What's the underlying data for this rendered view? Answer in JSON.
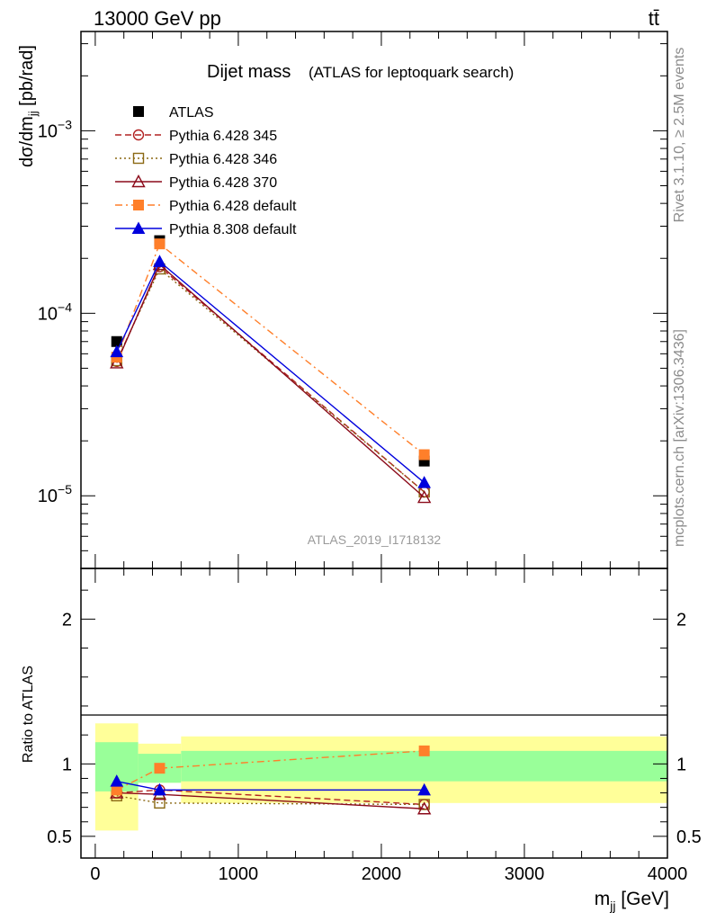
{
  "header": {
    "energy_label": "13000 GeV pp",
    "process_label": "tt̄"
  },
  "side_labels": {
    "rivet": "Rivet 3.1.10, ≥ 2.5M events",
    "mcplots": "mcplots.cern.ch [arXiv:1306.3436]"
  },
  "colors": {
    "atlas": "#000000",
    "py345": "#b22222",
    "py346": "#8b6914",
    "py370": "#8b0a1a",
    "py6def": "#ff7f2a",
    "py8def": "#0000dd",
    "band_inner": "#99ff99",
    "band_outer": "#ffff99"
  },
  "chart_data": [
    {
      "panel": "main",
      "type": "line",
      "title": "Dijet mass",
      "subtitle": "(ATLAS for leptoquark search)",
      "ylabel": "dσ/dm_jj [pb/rad]",
      "xlabel": "",
      "yscale": "log",
      "xlim": [
        -100,
        4000
      ],
      "ylim": [
        4e-06,
        0.0035
      ],
      "yticks": [
        "10^-5",
        "10^-4",
        "10^-3"
      ],
      "watermark": "ATLAS_2019_I1718132",
      "legend_position": "top-left",
      "x": [
        150,
        450,
        2300
      ],
      "series": [
        {
          "name": "ATLAS",
          "values": [
            7e-05,
            0.00025,
            1.55e-05
          ],
          "marker": "square-filled",
          "line": "none"
        },
        {
          "name": "Pythia 6.428 345",
          "values": [
            5.45e-05,
            0.00018,
            1.05e-05
          ],
          "marker": "circle-open",
          "line": "dashed"
        },
        {
          "name": "Pythia 6.428 346",
          "values": [
            5.5e-05,
            0.000175,
            1.05e-05
          ],
          "marker": "square-open",
          "line": "dotted"
        },
        {
          "name": "Pythia 6.428 370",
          "values": [
            5.35e-05,
            0.000185,
            9.8e-06
          ],
          "marker": "triangle-open",
          "line": "solid"
        },
        {
          "name": "Pythia 6.428 default",
          "values": [
            5.75e-05,
            0.00024,
            1.68e-05
          ],
          "marker": "square-filled",
          "line": "dashdot"
        },
        {
          "name": "Pythia 8.308 default",
          "values": [
            6.15e-05,
            0.000192,
            1.18e-05
          ],
          "marker": "triangle-filled",
          "line": "solid"
        }
      ]
    },
    {
      "panel": "ratio",
      "type": "line",
      "ylabel": "Ratio to ATLAS",
      "xlabel": "m_jj [GeV]",
      "xlim": [
        -100,
        4000
      ],
      "ylim": [
        0.35,
        2.35
      ],
      "xticks": [
        "0",
        "1000",
        "2000",
        "3000",
        "4000"
      ],
      "yticks": [
        "0.5",
        "1",
        "2"
      ],
      "bands": [
        {
          "x0": 0,
          "x1": 300,
          "inner": [
            0.81,
            1.15
          ],
          "outer": [
            0.54,
            1.28
          ]
        },
        {
          "x0": 300,
          "x1": 600,
          "inner": [
            0.87,
            1.07
          ],
          "outer": [
            0.87,
            1.14
          ]
        },
        {
          "x0": 600,
          "x1": 4000,
          "inner": [
            0.88,
            1.09
          ],
          "outer": [
            0.73,
            1.19
          ]
        }
      ],
      "x": [
        150,
        450,
        2300
      ],
      "series": [
        {
          "name": "Pythia 6.428 345",
          "values": [
            0.8,
            0.82,
            0.72
          ]
        },
        {
          "name": "Pythia 6.428 346",
          "values": [
            0.78,
            0.73,
            0.72
          ]
        },
        {
          "name": "Pythia 6.428 370",
          "values": [
            0.8,
            0.79,
            0.69
          ]
        },
        {
          "name": "Pythia 6.428 default",
          "values": [
            0.82,
            0.97,
            1.09
          ]
        },
        {
          "name": "Pythia 8.308 default",
          "values": [
            0.88,
            0.82,
            0.82
          ]
        }
      ]
    }
  ]
}
